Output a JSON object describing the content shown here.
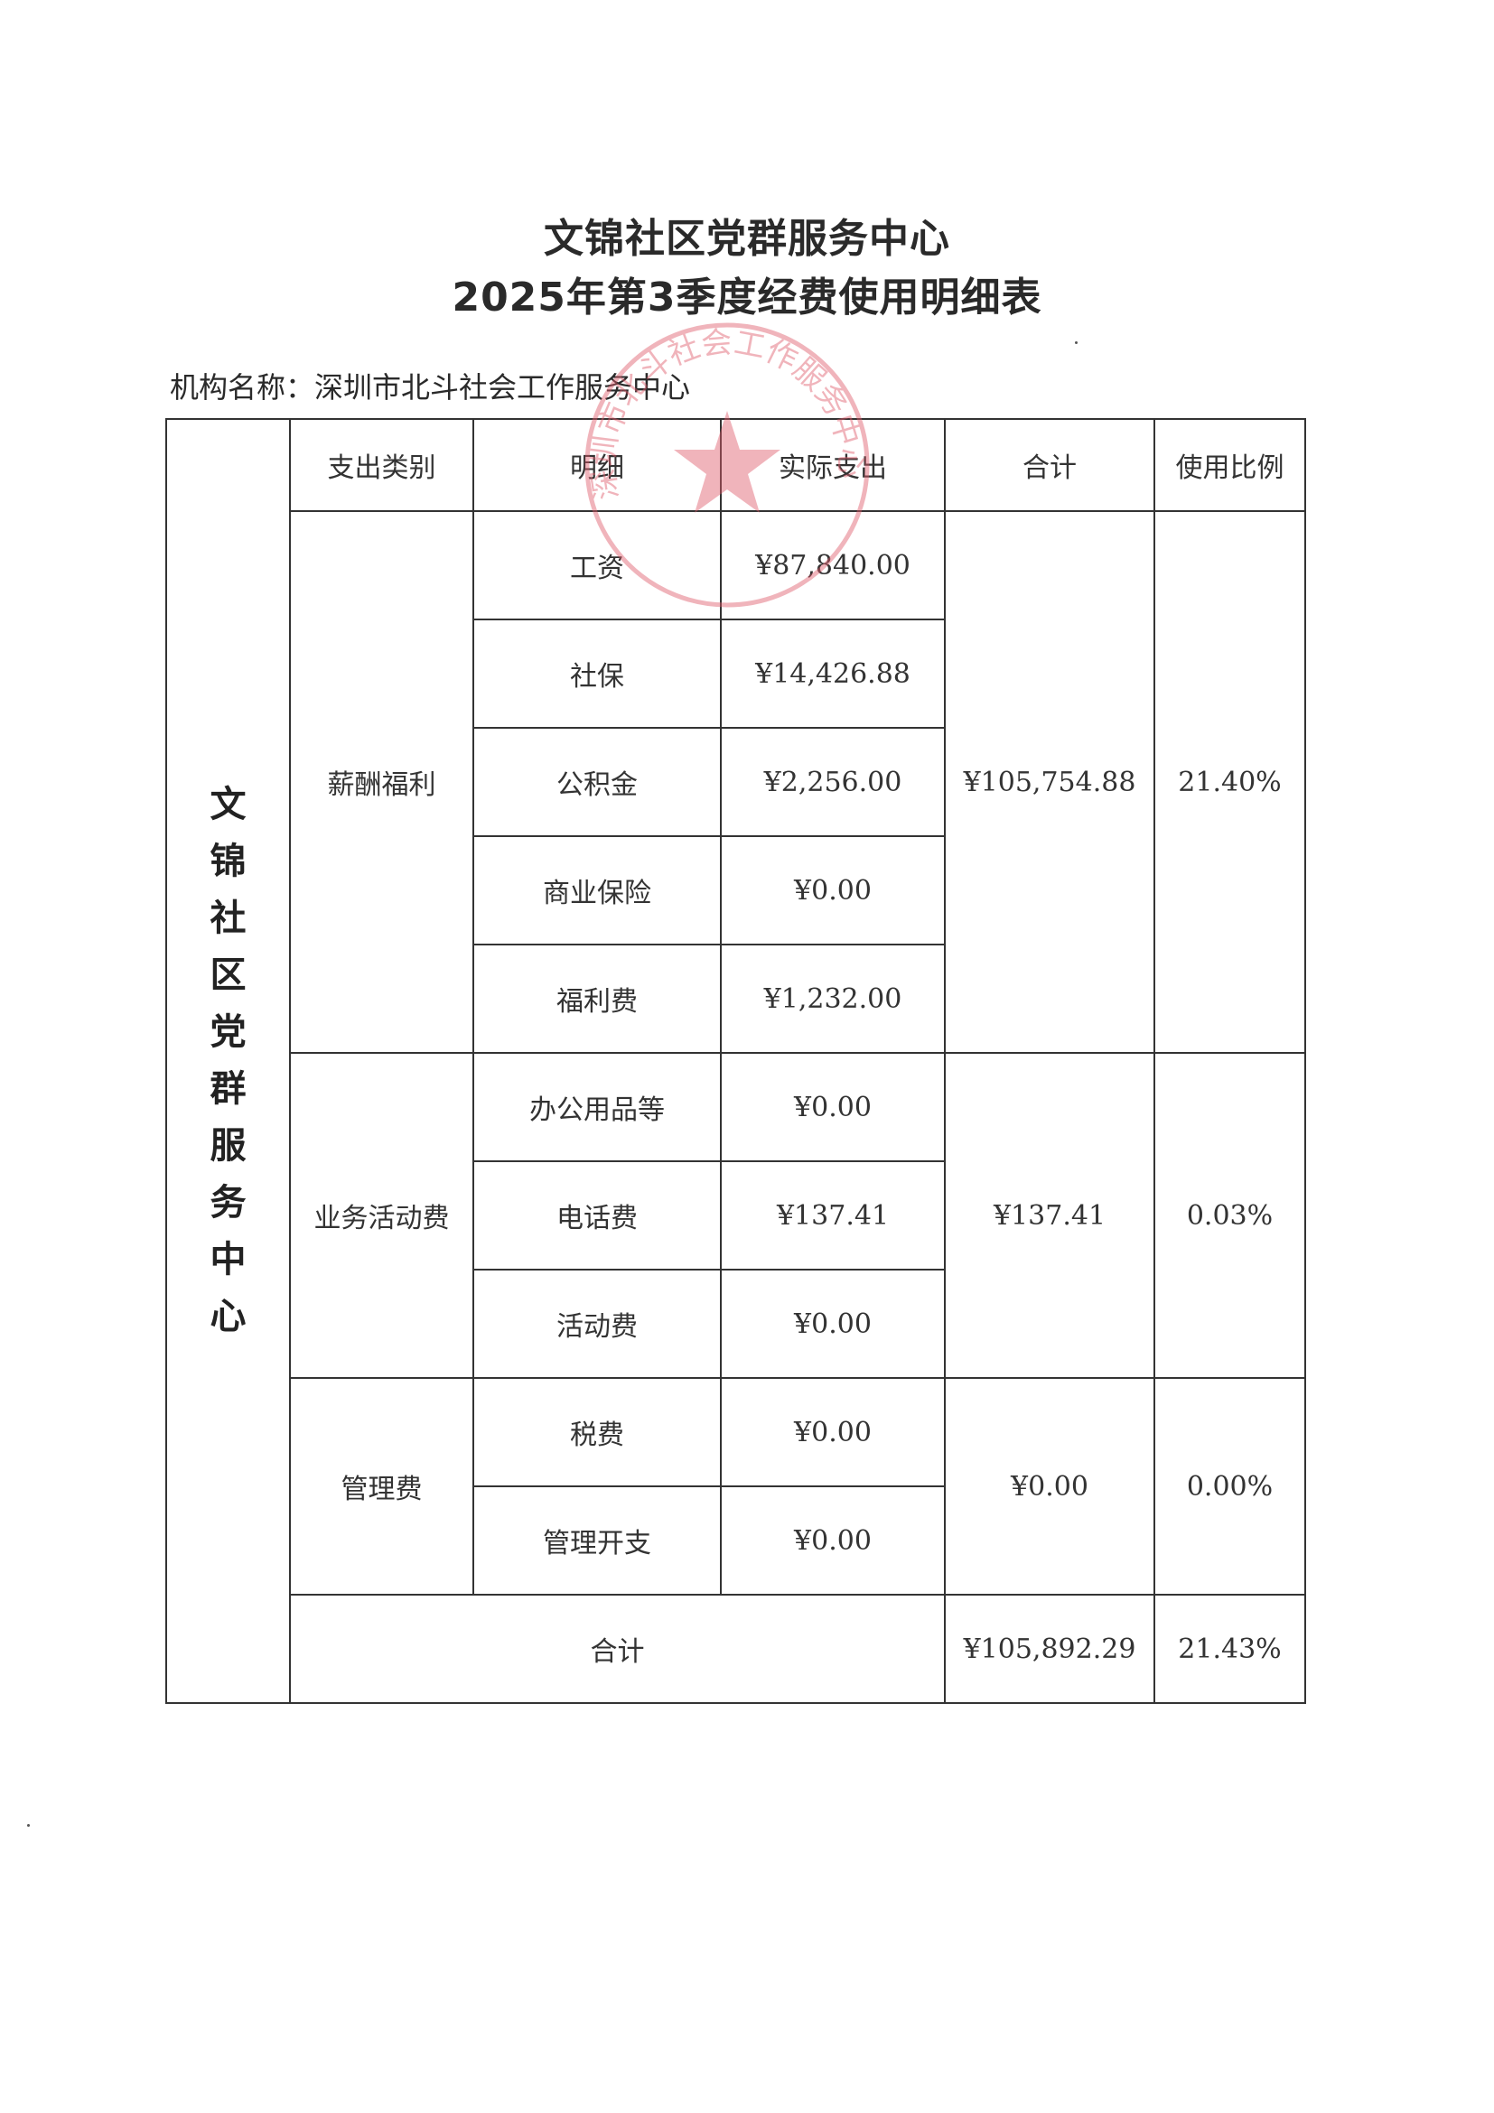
{
  "title_line1": "文锦社区党群服务中心",
  "title_line2": "2025年第3季度经费使用明细表",
  "org_label": "机构名称：深圳市北斗社会工作服务中心",
  "stamp_text": "深圳市北斗社会工作服务中心",
  "stamp_color": "#e05a6a",
  "side_label": [
    "文",
    "锦",
    "社",
    "区",
    "党",
    "群",
    "服",
    "务",
    "中",
    "心"
  ],
  "headers": [
    "支出类别",
    "明细",
    "实际支出",
    "合计",
    "使用比例"
  ],
  "groups": [
    {
      "category": "薪酬福利",
      "total": "¥105,754.88",
      "ratio": "21.40%",
      "items": [
        {
          "name": "工资",
          "amount": "¥87,840.00"
        },
        {
          "name": "社保",
          "amount": "¥14,426.88"
        },
        {
          "name": "公积金",
          "amount": "¥2,256.00"
        },
        {
          "name": "商业保险",
          "amount": "¥0.00"
        },
        {
          "name": "福利费",
          "amount": "¥1,232.00"
        }
      ]
    },
    {
      "category": "业务活动费",
      "total": "¥137.41",
      "ratio": "0.03%",
      "items": [
        {
          "name": "办公用品等",
          "amount": "¥0.00"
        },
        {
          "name": "电话费",
          "amount": "¥137.41"
        },
        {
          "name": "活动费",
          "amount": "¥0.00"
        }
      ]
    },
    {
      "category": "管理费",
      "total": "¥0.00",
      "ratio": "0.00%",
      "items": [
        {
          "name": "税费",
          "amount": "¥0.00"
        },
        {
          "name": "管理开支",
          "amount": "¥0.00"
        }
      ]
    }
  ],
  "grand_total": {
    "label": "合计",
    "total": "¥105,892.29",
    "ratio": "21.43%"
  }
}
